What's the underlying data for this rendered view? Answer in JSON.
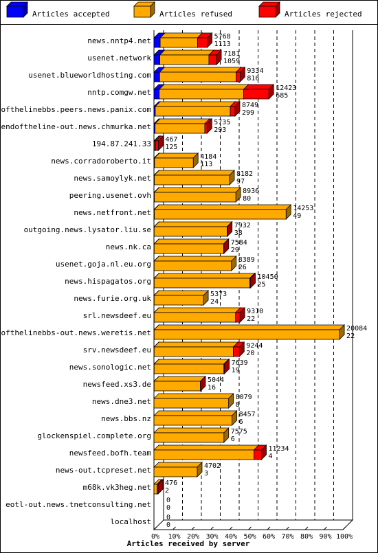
{
  "chart_data": {
    "type": "bar",
    "orientation": "horizontal",
    "stacked": true,
    "xlabel": "Articles received by server",
    "xlim": [
      0,
      100
    ],
    "x_ticks": [
      "0%",
      "10%",
      "20%",
      "30%",
      "40%",
      "50%",
      "60%",
      "70%",
      "80%",
      "90%",
      "100%"
    ],
    "legend_position": "top",
    "grid": true,
    "legend": [
      {
        "name": "Articles accepted",
        "color": "#0000ff"
      },
      {
        "name": "Articles refused",
        "color": "#ffaa00"
      },
      {
        "name": "Articles rejected",
        "color": "#ff0000"
      }
    ],
    "series_keys": [
      "accepted",
      "refused",
      "rejected"
    ],
    "categories": [
      "news.nntp4.net",
      "usenet.network",
      "usenet.blueworldhosting.com",
      "nntp.comgw.net",
      "endofthelinebbs.peers.news.panix.com",
      "endoftheline-out.news.chmurka.net",
      "194.87.241.33",
      "news.corradoroberto.it",
      "news.samoylyk.net",
      "peering.usenet.ovh",
      "news.netfront.net",
      "outgoing.news.lysator.liu.se",
      "news.nk.ca",
      "usenet.goja.nl.eu.org",
      "news.hispagatos.org",
      "news.furie.org.uk",
      "srl.newsdeef.eu",
      "endofthelinebbs-out.news.weretis.net",
      "srv.newsdeef.eu",
      "news.sonologic.net",
      "newsfeed.xs3.de",
      "news.dne3.net",
      "news.bbs.nz",
      "glockenspiel.complete.org",
      "newsfeed.bofh.team",
      "news-out.tcpreset.net",
      "m68k.vk3heg.net",
      "eotl-out.news.tnetconsulting.net",
      "localhost"
    ],
    "totals": [
      5768,
      7181,
      9334,
      12423,
      8749,
      5735,
      467,
      4184,
      8182,
      8936,
      14253,
      7932,
      7584,
      8389,
      10450,
      5373,
      9310,
      20084,
      9244,
      7639,
      5044,
      8079,
      8457,
      7575,
      11234,
      4702,
      476,
      0,
      0
    ],
    "accepted_counts": [
      1113,
      1059,
      816,
      685,
      299,
      293,
      125,
      113,
      97,
      80,
      49,
      38,
      29,
      26,
      25,
      24,
      22,
      22,
      20,
      19,
      16,
      8,
      6,
      6,
      4,
      3,
      2,
      0,
      0
    ],
    "accepted_pct": [
      3.3,
      3.1,
      3.0,
      2.8,
      0.7,
      0.6,
      0.3,
      0.3,
      0.2,
      0.2,
      0.2,
      0.1,
      0.1,
      0.1,
      0.1,
      0.1,
      0.1,
      0.1,
      0.1,
      0.1,
      0.1,
      0,
      0,
      0,
      0,
      0,
      0,
      0,
      0
    ],
    "refused_pct": [
      19.8,
      26.0,
      40.5,
      44.7,
      39.7,
      26.3,
      0.6,
      20.5,
      39.8,
      43.1,
      69.7,
      38.6,
      36.8,
      40.9,
      50.6,
      26.1,
      43.1,
      98.1,
      41.9,
      36.9,
      24.5,
      39.5,
      41.3,
      37.0,
      52.9,
      22.9,
      1.6,
      0,
      0
    ],
    "rejected_pct": [
      5.1,
      4.0,
      2.1,
      13.3,
      2.5,
      1.2,
      1.4,
      0,
      0,
      0,
      0,
      0.1,
      0.1,
      0,
      0.4,
      0,
      2.3,
      0,
      3.2,
      0.3,
      0.1,
      0,
      0,
      0,
      4.0,
      0,
      0.6,
      0,
      0
    ]
  }
}
